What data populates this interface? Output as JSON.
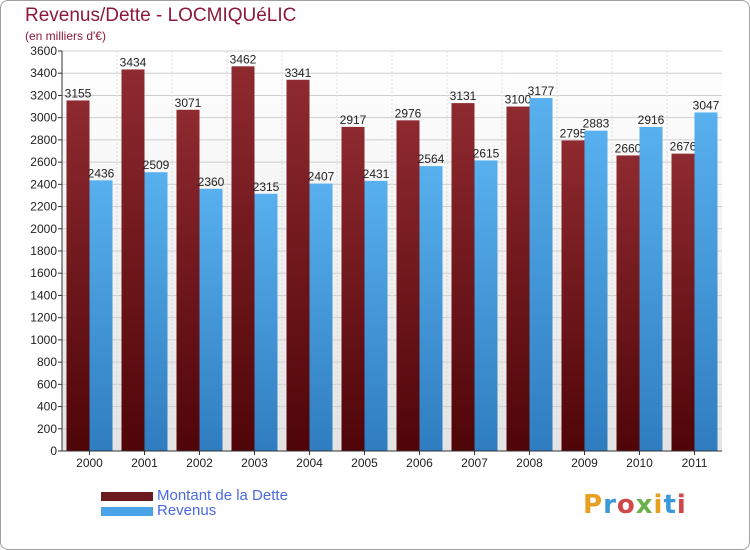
{
  "title": "Revenus/Dette - LOCMIQUéLIC",
  "subtitle": "(en milliers d'€)",
  "logo": "Proxiti",
  "colors": {
    "dette": "#7b1f24",
    "revenus": "#4aa3e6",
    "title": "#8b1a3a",
    "legend_text": "#4a6adf"
  },
  "chart_data": {
    "type": "bar",
    "categories": [
      "2000",
      "2001",
      "2002",
      "2003",
      "2004",
      "2005",
      "2006",
      "2007",
      "2008",
      "2009",
      "2010",
      "2011"
    ],
    "series": [
      {
        "name": "Montant de la Dette",
        "values": [
          3155,
          3434,
          3071,
          3462,
          3341,
          2917,
          2976,
          3131,
          3100,
          2795,
          2660,
          2676
        ]
      },
      {
        "name": "Revenus",
        "values": [
          2436,
          2509,
          2360,
          2315,
          2407,
          2431,
          2564,
          2615,
          3177,
          2883,
          2916,
          3047
        ]
      }
    ],
    "ylim": [
      0,
      3600
    ],
    "yticks": [
      0,
      200,
      400,
      600,
      800,
      1000,
      1200,
      1400,
      1600,
      1800,
      2000,
      2200,
      2400,
      2600,
      2800,
      3000,
      3200,
      3400,
      3600
    ],
    "grid": true,
    "legend": "bottom-left"
  }
}
